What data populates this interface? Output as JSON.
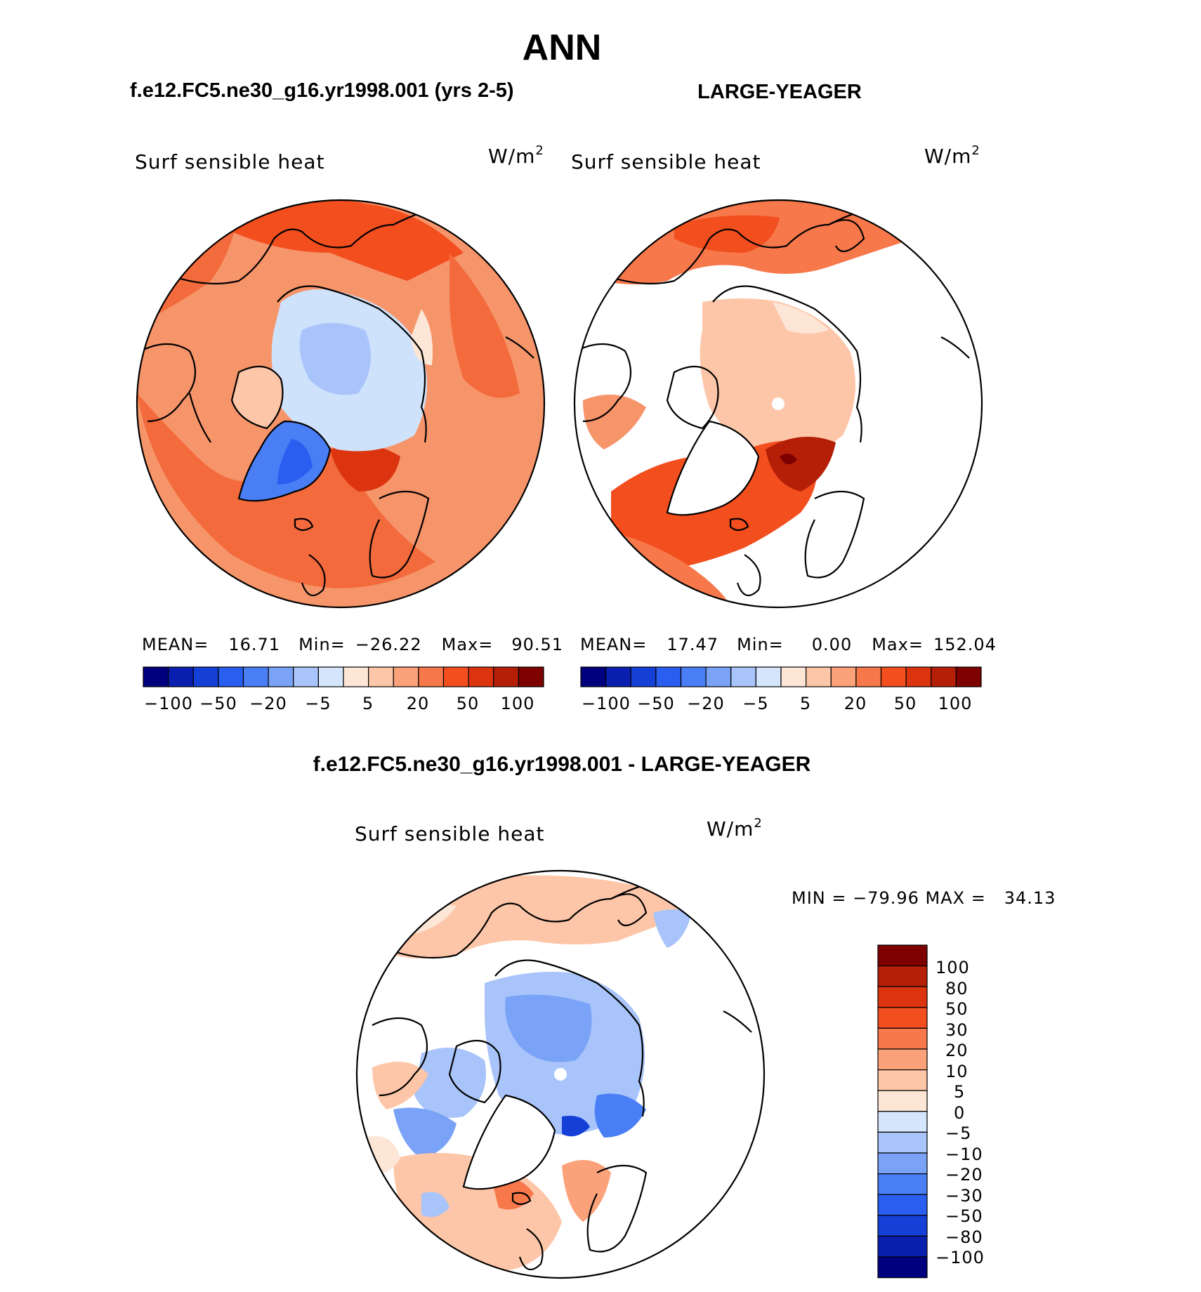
{
  "main_title": "ANN",
  "panels": [
    {
      "id": "case",
      "header": "f.e12.FC5.ne30_g16.yr1998.001 (yrs 2-5)",
      "variable": "Surf sensible heat",
      "units": "W/m",
      "units_exp": "2",
      "stats": {
        "mean_label": "MEAN=",
        "mean": "16.71",
        "min_label": "Min=",
        "min": "−26.22",
        "max_label": "Max=",
        "max": "90.51"
      },
      "colorbar_ticks": [
        "−100",
        "−50",
        "−20",
        "−5",
        "5",
        "20",
        "50",
        "100"
      ]
    },
    {
      "id": "obs",
      "header": "LARGE-YEAGER",
      "variable": "Surf sensible heat",
      "units": "W/m",
      "units_exp": "2",
      "stats": {
        "mean_label": "MEAN=",
        "mean": "17.47",
        "min_label": "Min=",
        "min": "0.00",
        "max_label": "Max=",
        "max": "152.04"
      },
      "colorbar_ticks": [
        "−100",
        "−50",
        "−20",
        "−5",
        "5",
        "20",
        "50",
        "100"
      ]
    }
  ],
  "difference": {
    "header": "f.e12.FC5.ne30_g16.yr1998.001 - LARGE-YEAGER",
    "variable": "Surf sensible heat",
    "units": "W/m",
    "units_exp": "2",
    "minmax": "MIN = −79.96 MAX =   34.13",
    "colorbar_labels": [
      "100",
      "80",
      "50",
      "30",
      "20",
      "10",
      "5",
      "0",
      "−5",
      "−10",
      "−20",
      "−30",
      "−50",
      "−80",
      "−100"
    ]
  },
  "colors": {
    "scale": [
      "#00007f",
      "#0a1fb0",
      "#1440d8",
      "#2a5ef0",
      "#4a7ef5",
      "#7aa2f7",
      "#a8c4fa",
      "#d5e6fc",
      "#fde6d6",
      "#fdc6a8",
      "#fba27a",
      "#f7784a",
      "#f24e1e",
      "#dd3410",
      "#b51f08",
      "#7f0000"
    ],
    "land_case": "#f36a3c",
    "ocean_case": "#f6946a",
    "ice_blue": "#cfe2fb",
    "greenland": "#5d86ee"
  }
}
